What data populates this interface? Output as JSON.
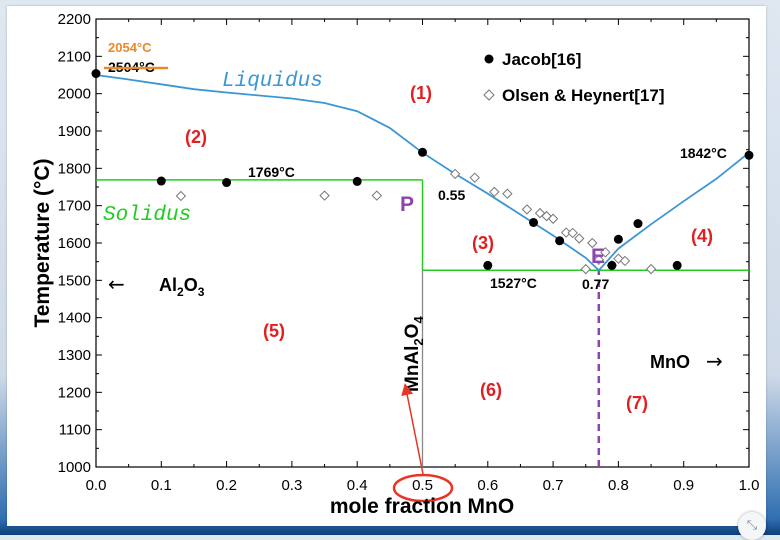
{
  "chart_data": {
    "type": "scatter",
    "title": "",
    "xlabel": "mole fraction MnO",
    "ylabel": "Temperature (°C)",
    "xlim": [
      0.0,
      1.0
    ],
    "ylim": [
      1000,
      2200
    ],
    "xticks": [
      0.0,
      0.1,
      0.2,
      0.3,
      0.4,
      0.5,
      0.6,
      0.7,
      0.8,
      0.9,
      1.0
    ],
    "xtick_labels": [
      "0.0",
      "0.1",
      "0.2",
      "0.3",
      "0.4",
      "0.5",
      "0.6",
      "0.7",
      "0.8",
      "0.9",
      "1.0"
    ],
    "yticks": [
      1000,
      1100,
      1200,
      1300,
      1400,
      1500,
      1600,
      1700,
      1800,
      1900,
      2000,
      2100,
      2200
    ],
    "ytick_labels": [
      "1000",
      "1100",
      "1200",
      "1300",
      "1400",
      "1500",
      "1600",
      "1700",
      "1800",
      "1900",
      "2000",
      "2100",
      "2200"
    ],
    "legend_position": "top-right",
    "series": [
      {
        "name": "Jacob[16]",
        "marker": "filled-circle",
        "color": "#000000",
        "x": [
          0.0,
          0.1,
          0.2,
          0.4,
          0.5,
          0.6,
          0.67,
          0.71,
          0.79,
          0.8,
          0.83,
          0.89,
          1.0
        ],
        "y": [
          2054,
          1766,
          1762,
          1765,
          1843,
          1540,
          1655,
          1606,
          1540,
          1610,
          1652,
          1540,
          1835
        ]
      },
      {
        "name": "Olsen & Heynert[17]",
        "marker": "open-diamond",
        "color": "#000000",
        "x": [
          0.13,
          0.35,
          0.43,
          0.55,
          0.58,
          0.61,
          0.63,
          0.66,
          0.68,
          0.69,
          0.7,
          0.72,
          0.73,
          0.74,
          0.75,
          0.76,
          0.77,
          0.78,
          0.79,
          0.8,
          0.81,
          0.85
        ],
        "y": [
          1726,
          1727,
          1727,
          1785,
          1775,
          1737,
          1732,
          1690,
          1680,
          1672,
          1665,
          1628,
          1627,
          1612,
          1530,
          1600,
          1555,
          1575,
          1540,
          1558,
          1552,
          1530
        ]
      }
    ],
    "liquidus_curve": {
      "name": "Liquidus",
      "color": "#3b97d3",
      "x": [
        0.0,
        0.05,
        0.1,
        0.15,
        0.2,
        0.25,
        0.3,
        0.35,
        0.4,
        0.45,
        0.5,
        0.55,
        0.6,
        0.65,
        0.7,
        0.75,
        0.77,
        0.8,
        0.85,
        0.9,
        0.95,
        1.0
      ],
      "y": [
        2050,
        2038,
        2025,
        2012,
        2003,
        1995,
        1987,
        1975,
        1953,
        1908,
        1842,
        1785,
        1732,
        1676,
        1620,
        1560,
        1527,
        1585,
        1650,
        1712,
        1772,
        1842
      ]
    },
    "reference_lines": [
      {
        "name": "Solidus",
        "color": "#22cc22",
        "y": 1769,
        "x_range": [
          0.0,
          0.5
        ]
      },
      {
        "name": "eutectic",
        "color": "#22cc22",
        "y": 1527,
        "x_range": [
          0.5,
          1.0
        ]
      },
      {
        "name": "peritectic-vertical",
        "color": "#22cc22",
        "x": 0.5,
        "y_range": [
          1527,
          1769
        ]
      },
      {
        "name": "MnAl2O4-line",
        "color": "#888888",
        "x": 0.5,
        "y_range": [
          1000,
          1527
        ]
      },
      {
        "name": "eutectic-composition",
        "color": "#8e44ad",
        "style": "dashed",
        "x": 0.77,
        "y_range": [
          1000,
          1527
        ]
      }
    ],
    "region_labels": [
      "(1)",
      "(2)",
      "(3)",
      "(4)",
      "(5)",
      "(6)",
      "(7)"
    ],
    "annotations": {
      "temp_alumina_original": "2504°C",
      "temp_alumina_corrected": "2054°C",
      "temp_solidus": "1769°C",
      "temp_mno": "1842°C",
      "temp_eutectic": "1527°C",
      "comp_peritectic": "0.55",
      "comp_eutectic": "0.77",
      "point_p": "P",
      "point_e": "E",
      "liquidus_label": "Liquidus",
      "solidus_label": "Solidus",
      "al2o3_label": "Al",
      "al2o3_sub1": "2",
      "al2o3_o": "O",
      "al2o3_sub2": "3",
      "al2o3_arrow": "←",
      "mno_label": "MnO",
      "mno_arrow": "→",
      "spinel_label": "MnAl",
      "spinel_sub1": "2",
      "spinel_o": "O",
      "spinel_sub2": "4"
    },
    "colors": {
      "liquidus": "#3b97d3",
      "solidus": "#22cc22",
      "regions": "#e02020",
      "corrected_temp": "#e8892b",
      "point_marker": "#8e44ad",
      "highlight_circle": "#e83525"
    }
  },
  "ui": {
    "corner_icon": "collapse-arrows-icon",
    "corner_glyph": "⤡"
  }
}
